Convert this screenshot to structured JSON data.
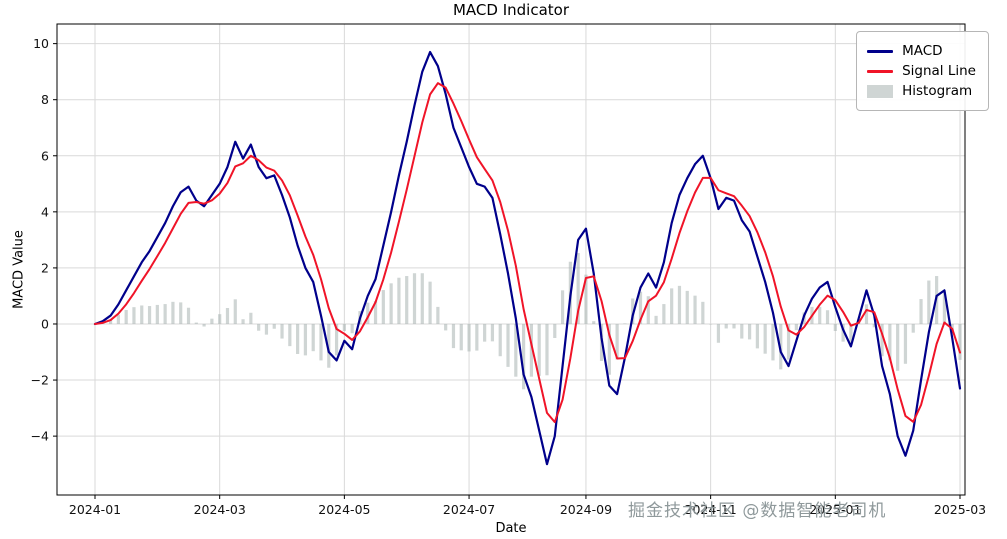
{
  "watermark": "掘金技术社区 @数据智能老司机",
  "colors": {
    "macd_line": "#00008b",
    "signal_line": "#f01428",
    "histogram": "#a7b3b1",
    "grid": "#d9d9d9",
    "spine": "#000000"
  },
  "chart_data": {
    "type": "line",
    "title": "MACD Indicator",
    "xlabel": "Date",
    "ylabel": "MACD Value",
    "ylim": [
      -6.1,
      10.7
    ],
    "y_ticks": [
      -4,
      -2,
      0,
      2,
      4,
      6,
      8,
      10
    ],
    "x_ticks": [
      {
        "label": "2024-01",
        "index": 0
      },
      {
        "label": "2024-03",
        "index": 16
      },
      {
        "label": "2024-05",
        "index": 32
      },
      {
        "label": "2024-07",
        "index": 48
      },
      {
        "label": "2024-09",
        "index": 63
      },
      {
        "label": "2024-11",
        "index": 79
      },
      {
        "label": "2025-01",
        "index": 95
      },
      {
        "label": "2025-03",
        "index": 111
      }
    ],
    "grid": true,
    "legend_position": "upper right",
    "series": [
      {
        "name": "MACD",
        "type": "line",
        "color": "#00008b",
        "values": [
          0,
          0.1,
          0.3,
          0.7,
          1.2,
          1.7,
          2.2,
          2.6,
          3.1,
          3.6,
          4.2,
          4.7,
          4.9,
          4.4,
          4.2,
          4.6,
          5.0,
          5.6,
          6.5,
          5.9,
          6.4,
          5.6,
          5.2,
          5.3,
          4.6,
          3.8,
          2.8,
          2.0,
          1.5,
          0.3,
          -1.0,
          -1.3,
          -0.6,
          -0.9,
          0.2,
          1.0,
          1.6,
          2.8,
          4.0,
          5.3,
          6.5,
          7.8,
          9.0,
          9.7,
          9.2,
          8.2,
          7.0,
          6.3,
          5.6,
          5.0,
          4.9,
          4.5,
          3.2,
          1.8,
          0.2,
          -1.8,
          -2.6,
          -3.8,
          -5.0,
          -4.0,
          -1.5,
          1.0,
          3.0,
          3.4,
          1.8,
          -0.5,
          -2.2,
          -2.5,
          -1.2,
          0.3,
          1.3,
          1.8,
          1.3,
          2.2,
          3.6,
          4.6,
          5.2,
          5.7,
          6.0,
          5.2,
          4.1,
          4.5,
          4.4,
          3.7,
          3.3,
          2.4,
          1.5,
          0.4,
          -1.0,
          -1.5,
          -0.6,
          0.3,
          0.9,
          1.3,
          1.5,
          0.6,
          -0.2,
          -0.8,
          0.2,
          1.2,
          0.3,
          -1.5,
          -2.5,
          -4.0,
          -4.7,
          -3.8,
          -2.0,
          -0.3,
          1.0,
          1.2,
          -0.5,
          -2.3
        ]
      },
      {
        "name": "Signal Line",
        "type": "line",
        "color": "#f01428",
        "values": [
          0,
          0.04,
          0.14,
          0.37,
          0.7,
          1.1,
          1.54,
          1.96,
          2.42,
          2.89,
          3.41,
          3.93,
          4.32,
          4.35,
          4.29,
          4.41,
          4.65,
          5.03,
          5.62,
          5.73,
          6.0,
          5.84,
          5.58,
          5.47,
          5.12,
          4.59,
          3.87,
          3.12,
          2.47,
          1.6,
          0.56,
          -0.18,
          -0.35,
          -0.57,
          -0.26,
          0.24,
          0.78,
          1.59,
          2.55,
          3.65,
          4.79,
          5.99,
          7.19,
          8.19,
          8.59,
          8.43,
          7.86,
          7.24,
          6.58,
          5.95,
          5.53,
          5.12,
          4.35,
          3.33,
          2.08,
          0.53,
          -0.72,
          -1.95,
          -3.17,
          -3.5,
          -2.7,
          -1.22,
          0.47,
          1.64,
          1.7,
          0.82,
          -0.39,
          -1.23,
          -1.22,
          -0.61,
          0.15,
          0.81,
          1.01,
          1.49,
          2.33,
          3.24,
          4.02,
          4.69,
          5.21,
          5.21,
          4.77,
          4.66,
          4.56,
          4.22,
          3.85,
          3.27,
          2.56,
          1.7,
          0.62,
          -0.23,
          -0.38,
          -0.11,
          0.29,
          0.69,
          1.01,
          0.85,
          0.43,
          -0.06,
          0.04,
          0.5,
          0.42,
          -0.35,
          -1.21,
          -2.33,
          -3.28,
          -3.49,
          -2.89,
          -1.85,
          -0.71,
          0.05,
          -0.17,
          -1.02
        ]
      },
      {
        "name": "Histogram",
        "type": "bar",
        "color": "#a7b3b1",
        "opacity": 0.55,
        "values": [
          0,
          0.06,
          0.16,
          0.33,
          0.5,
          0.6,
          0.66,
          0.64,
          0.68,
          0.71,
          0.79,
          0.77,
          0.58,
          0.05,
          -0.09,
          0.19,
          0.35,
          0.57,
          0.88,
          0.17,
          0.4,
          -0.24,
          -0.38,
          -0.17,
          -0.52,
          -0.79,
          -1.07,
          -1.12,
          -0.97,
          -1.3,
          -1.56,
          -1.12,
          -0.25,
          -0.33,
          0.46,
          0.76,
          0.82,
          1.21,
          1.45,
          1.65,
          1.71,
          1.81,
          1.81,
          1.51,
          0.61,
          -0.23,
          -0.86,
          -0.94,
          -0.98,
          -0.95,
          -0.63,
          -0.62,
          -1.15,
          -1.53,
          -1.88,
          -2.33,
          -1.88,
          -1.85,
          -1.83,
          -0.5,
          1.2,
          2.22,
          2.53,
          1.76,
          0.1,
          -1.32,
          -1.81,
          -1.27,
          0.02,
          0.91,
          1.15,
          0.99,
          0.29,
          0.71,
          1.27,
          1.36,
          1.18,
          1.01,
          0.79,
          -0.01,
          -0.67,
          -0.16,
          -0.16,
          -0.52,
          -0.55,
          -0.87,
          -1.06,
          -1.3,
          -1.62,
          -1.27,
          -0.22,
          0.41,
          0.61,
          0.61,
          0.49,
          -0.25,
          -0.63,
          -0.74,
          0.16,
          0.7,
          -0.12,
          -1.15,
          -1.29,
          -1.67,
          -1.42,
          -0.31,
          0.89,
          1.55,
          1.71,
          1.15,
          -0.33,
          -1.28
        ]
      }
    ]
  }
}
